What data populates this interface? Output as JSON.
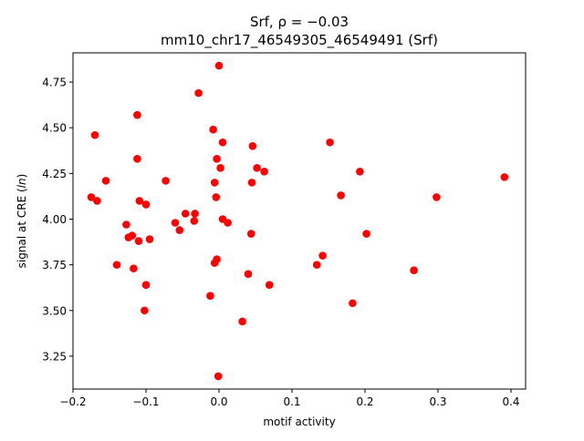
{
  "chart_data": {
    "type": "scatter",
    "title_line1": "Srf, ρ = −0.03",
    "title_line2": "mm10_chr17_46549305_46549491 (Srf)",
    "xlabel": "motif activity",
    "ylabel_prefix": "signal at CRE (",
    "ylabel_italic": "ln",
    "ylabel_suffix": ")",
    "xlim": [
      -0.2,
      0.42
    ],
    "ylim": [
      3.07,
      4.91
    ],
    "x_ticks": [
      -0.2,
      -0.1,
      0.0,
      0.1,
      0.2,
      0.3,
      0.4
    ],
    "x_tick_labels": [
      "−0.2",
      "−0.1",
      "0.0",
      "0.1",
      "0.2",
      "0.3",
      "0.4"
    ],
    "y_ticks": [
      3.25,
      3.5,
      3.75,
      4.0,
      4.25,
      4.5,
      4.75
    ],
    "y_tick_labels": [
      "3.25",
      "3.50",
      "3.75",
      "4.00",
      "4.25",
      "4.50",
      "4.75"
    ],
    "grid": false,
    "marker_color": "#ff0000",
    "points": [
      {
        "x": 0.0,
        "y": 4.84
      },
      {
        "x": -0.028,
        "y": 4.69
      },
      {
        "x": -0.112,
        "y": 4.57
      },
      {
        "x": -0.008,
        "y": 4.49
      },
      {
        "x": -0.17,
        "y": 4.46
      },
      {
        "x": 0.005,
        "y": 4.42
      },
      {
        "x": 0.152,
        "y": 4.42
      },
      {
        "x": 0.046,
        "y": 4.4
      },
      {
        "x": -0.112,
        "y": 4.33
      },
      {
        "x": -0.003,
        "y": 4.33
      },
      {
        "x": 0.002,
        "y": 4.28
      },
      {
        "x": 0.052,
        "y": 4.28
      },
      {
        "x": 0.062,
        "y": 4.26
      },
      {
        "x": 0.193,
        "y": 4.26
      },
      {
        "x": 0.391,
        "y": 4.23
      },
      {
        "x": -0.155,
        "y": 4.21
      },
      {
        "x": -0.073,
        "y": 4.21
      },
      {
        "x": -0.006,
        "y": 4.2
      },
      {
        "x": 0.045,
        "y": 4.2
      },
      {
        "x": -0.175,
        "y": 4.12
      },
      {
        "x": -0.004,
        "y": 4.12
      },
      {
        "x": 0.167,
        "y": 4.13
      },
      {
        "x": 0.298,
        "y": 4.12
      },
      {
        "x": -0.167,
        "y": 4.1
      },
      {
        "x": -0.109,
        "y": 4.1
      },
      {
        "x": -0.1,
        "y": 4.08
      },
      {
        "x": -0.046,
        "y": 4.03
      },
      {
        "x": -0.033,
        "y": 4.03
      },
      {
        "x": 0.005,
        "y": 4.0
      },
      {
        "x": 0.012,
        "y": 3.98
      },
      {
        "x": -0.034,
        "y": 3.99
      },
      {
        "x": -0.06,
        "y": 3.98
      },
      {
        "x": -0.127,
        "y": 3.97
      },
      {
        "x": -0.054,
        "y": 3.94
      },
      {
        "x": -0.119,
        "y": 3.91
      },
      {
        "x": -0.124,
        "y": 3.9
      },
      {
        "x": -0.095,
        "y": 3.89
      },
      {
        "x": -0.11,
        "y": 3.88
      },
      {
        "x": 0.044,
        "y": 3.92
      },
      {
        "x": 0.202,
        "y": 3.92
      },
      {
        "x": 0.142,
        "y": 3.8
      },
      {
        "x": -0.003,
        "y": 3.78
      },
      {
        "x": -0.006,
        "y": 3.76
      },
      {
        "x": -0.14,
        "y": 3.75
      },
      {
        "x": 0.134,
        "y": 3.75
      },
      {
        "x": -0.117,
        "y": 3.73
      },
      {
        "x": 0.267,
        "y": 3.72
      },
      {
        "x": 0.04,
        "y": 3.7
      },
      {
        "x": -0.1,
        "y": 3.64
      },
      {
        "x": 0.069,
        "y": 3.64
      },
      {
        "x": -0.012,
        "y": 3.58
      },
      {
        "x": 0.183,
        "y": 3.54
      },
      {
        "x": -0.102,
        "y": 3.5
      },
      {
        "x": 0.032,
        "y": 3.44
      },
      {
        "x": -0.001,
        "y": 3.14
      }
    ]
  }
}
